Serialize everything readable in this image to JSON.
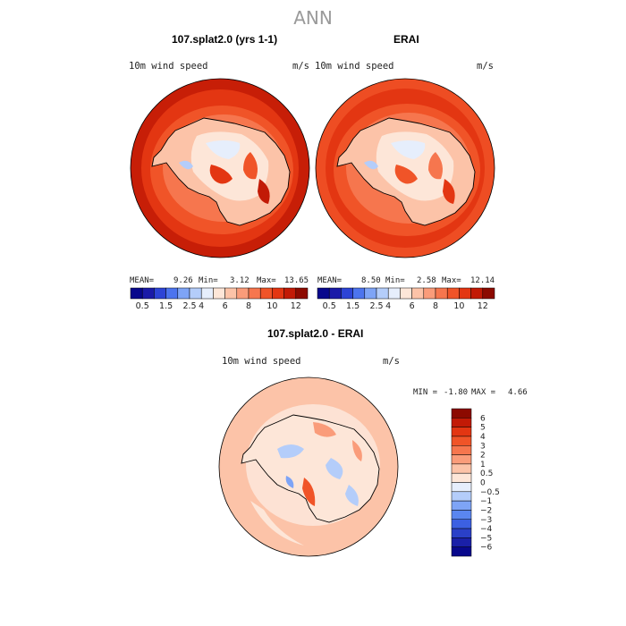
{
  "page": {
    "title": "ANN"
  },
  "colors": {
    "abs_scale": [
      "#08088c",
      "#1a1aa8",
      "#2d44d6",
      "#4c74ee",
      "#7ea4f6",
      "#b4cdfa",
      "#e6eefc",
      "#fde6d8",
      "#fcc3a8",
      "#fa9c7a",
      "#f6764e",
      "#f05428",
      "#e33612",
      "#c21a06",
      "#8c0a00"
    ],
    "diff_scale": [
      "#8c0a00",
      "#c21a06",
      "#e33612",
      "#f05428",
      "#f6764e",
      "#fa9c7a",
      "#fcc3a8",
      "#fde6d8",
      "#e6eefc",
      "#b4cdfa",
      "#7ea4f6",
      "#5a86f0",
      "#3c60e2",
      "#2a40c8",
      "#1a20a8",
      "#08088c"
    ],
    "coastline": "#000000"
  },
  "chart_data": [
    {
      "type": "heatmap",
      "projection": "south-polar-stereographic",
      "title": "107.splat2.0 (yrs 1-1)",
      "variable_label": "10m wind speed",
      "units": "m/s",
      "stats": {
        "mean_label": "MEAN=",
        "mean": "9.26",
        "min_label": "Min=",
        "min": "3.12",
        "max_label": "Max=",
        "max": "13.65"
      },
      "colorbar": {
        "orientation": "horizontal",
        "tick_labels": [
          "0.5",
          "1.5",
          "2.5",
          "4",
          "6",
          "8",
          "10",
          "12"
        ]
      }
    },
    {
      "type": "heatmap",
      "projection": "south-polar-stereographic",
      "title": "ERAI",
      "variable_label": "10m wind speed",
      "units": "m/s",
      "stats": {
        "mean_label": "MEAN=",
        "mean": "8.50",
        "min_label": "Min=",
        "min": "2.58",
        "max_label": "Max=",
        "max": "12.14"
      },
      "colorbar": {
        "orientation": "horizontal",
        "tick_labels": [
          "0.5",
          "1.5",
          "2.5",
          "4",
          "6",
          "8",
          "10",
          "12"
        ]
      }
    },
    {
      "type": "heatmap",
      "projection": "south-polar-stereographic",
      "title": "107.splat2.0 - ERAI",
      "variable_label": "10m wind speed",
      "units": "m/s",
      "stats": {
        "min_label": "MIN =",
        "min": "-1.80",
        "max_label": "MAX =",
        "max": "4.66"
      },
      "colorbar": {
        "orientation": "vertical",
        "tick_labels": [
          "6",
          "5",
          "4",
          "3",
          "2",
          "1",
          "0.5",
          "0",
          "−0.5",
          "−1",
          "−2",
          "−3",
          "−4",
          "−5",
          "−6"
        ]
      }
    }
  ]
}
